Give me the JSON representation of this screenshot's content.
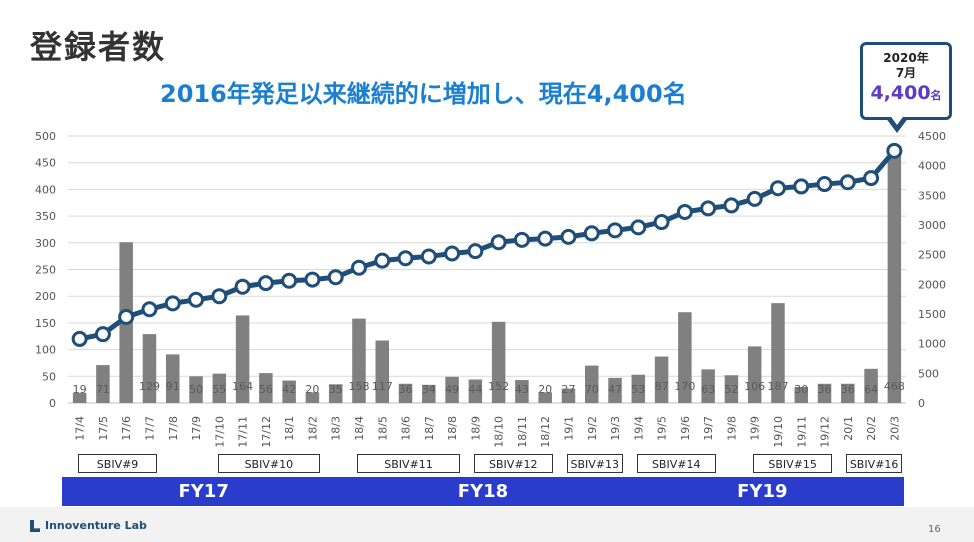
{
  "title": "登録者数",
  "subtitle": "2016年発足以来継続的に増加し、現在4,400名",
  "callout": {
    "line1": "2020年",
    "line2": "7月",
    "value": "4,400",
    "unit": "名"
  },
  "footer": {
    "logo": "Innoventure Lab",
    "page": "16"
  },
  "chart_data": {
    "type": "bar",
    "categories": [
      "17/4",
      "17/5",
      "17/6",
      "17/7",
      "17/8",
      "17/9",
      "17/10",
      "17/11",
      "17/12",
      "18/1",
      "18/2",
      "18/3",
      "18/4",
      "18/5",
      "18/6",
      "18/7",
      "18/8",
      "18/9",
      "18/10",
      "18/11",
      "18/12",
      "19/1",
      "19/2",
      "19/3",
      "19/4",
      "19/5",
      "19/6",
      "19/7",
      "19/8",
      "19/9",
      "19/10",
      "19/11",
      "19/12",
      "20/1",
      "20/2",
      "20/3"
    ],
    "series": [
      {
        "type": "bar",
        "axis": "left",
        "color": "#808080",
        "values": [
          19,
          71,
          301,
          129,
          91,
          50,
          55,
          164,
          56,
          42,
          20,
          35,
          158,
          117,
          36,
          34,
          49,
          44,
          152,
          43,
          20,
          27,
          70,
          47,
          53,
          87,
          170,
          63,
          52,
          106,
          187,
          30,
          36,
          36,
          64,
          468
        ],
        "labels": [
          "19",
          "71",
          "",
          "129",
          "91",
          "50",
          "55",
          "164",
          "56",
          "42",
          "20",
          "35",
          "158",
          "117",
          "36",
          "34",
          "49",
          "44",
          "152",
          "43",
          "20",
          "27",
          "70",
          "47",
          "53",
          "87",
          "170",
          "63",
          "52",
          "106",
          "187",
          "30",
          "36",
          "36",
          "64",
          "468"
        ]
      },
      {
        "type": "line",
        "axis": "right",
        "color": "#1f4e79",
        "values": [
          1080,
          1160,
          1450,
          1580,
          1680,
          1740,
          1800,
          1960,
          2020,
          2060,
          2080,
          2120,
          2280,
          2400,
          2440,
          2470,
          2520,
          2560,
          2710,
          2750,
          2770,
          2800,
          2860,
          2910,
          2960,
          3050,
          3220,
          3280,
          3330,
          3440,
          3620,
          3650,
          3690,
          3720,
          3790,
          4250
        ]
      }
    ],
    "left_axis": {
      "min": 0,
      "max": 500,
      "ticks": [
        "0",
        "50",
        "100",
        "150",
        "200",
        "250",
        "300",
        "350",
        "400",
        "450",
        "500"
      ]
    },
    "right_axis": {
      "min": 0,
      "max": 4500,
      "ticks": [
        "0",
        "500",
        "1000",
        "1500",
        "2000",
        "2500",
        "3000",
        "3500",
        "4000",
        "4500"
      ]
    },
    "grid": true
  },
  "programs": [
    {
      "label": "SBIV#9",
      "start": 0,
      "end": 3
    },
    {
      "label": "SBIV#10",
      "start": 6,
      "end": 10
    },
    {
      "label": "SBIV#11",
      "start": 12,
      "end": 16
    },
    {
      "label": "SBIV#12",
      "start": 17,
      "end": 20
    },
    {
      "label": "SBIV#13",
      "start": 21,
      "end": 23
    },
    {
      "label": "SBIV#14",
      "start": 24,
      "end": 27
    },
    {
      "label": "SBIV#15",
      "start": 29,
      "end": 32
    },
    {
      "label": "SBIV#16",
      "start": 33,
      "end": 35
    }
  ],
  "fiscal_years": [
    {
      "label": "FY17",
      "start": 0,
      "end": 11
    },
    {
      "label": "FY18",
      "start": 12,
      "end": 23
    },
    {
      "label": "FY19",
      "start": 24,
      "end": 35
    }
  ]
}
